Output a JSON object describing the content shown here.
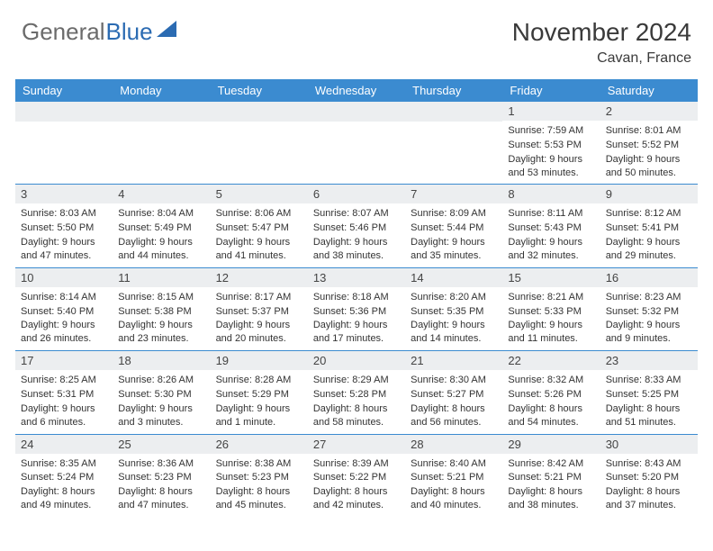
{
  "logo": {
    "text1": "General",
    "text2": "Blue"
  },
  "title": "November 2024",
  "location": "Cavan, France",
  "colors": {
    "header_bg": "#3b8bd0",
    "header_text": "#ffffff",
    "daynum_bg": "#eceef0",
    "border": "#3b8bd0",
    "logo_grey": "#6b6b6b",
    "logo_blue": "#2b6bb2"
  },
  "weekdays": [
    "Sunday",
    "Monday",
    "Tuesday",
    "Wednesday",
    "Thursday",
    "Friday",
    "Saturday"
  ],
  "weeks": [
    [
      {
        "num": "",
        "sunrise": "",
        "sunset": "",
        "daylight": ""
      },
      {
        "num": "",
        "sunrise": "",
        "sunset": "",
        "daylight": ""
      },
      {
        "num": "",
        "sunrise": "",
        "sunset": "",
        "daylight": ""
      },
      {
        "num": "",
        "sunrise": "",
        "sunset": "",
        "daylight": ""
      },
      {
        "num": "",
        "sunrise": "",
        "sunset": "",
        "daylight": ""
      },
      {
        "num": "1",
        "sunrise": "Sunrise: 7:59 AM",
        "sunset": "Sunset: 5:53 PM",
        "daylight": "Daylight: 9 hours and 53 minutes."
      },
      {
        "num": "2",
        "sunrise": "Sunrise: 8:01 AM",
        "sunset": "Sunset: 5:52 PM",
        "daylight": "Daylight: 9 hours and 50 minutes."
      }
    ],
    [
      {
        "num": "3",
        "sunrise": "Sunrise: 8:03 AM",
        "sunset": "Sunset: 5:50 PM",
        "daylight": "Daylight: 9 hours and 47 minutes."
      },
      {
        "num": "4",
        "sunrise": "Sunrise: 8:04 AM",
        "sunset": "Sunset: 5:49 PM",
        "daylight": "Daylight: 9 hours and 44 minutes."
      },
      {
        "num": "5",
        "sunrise": "Sunrise: 8:06 AM",
        "sunset": "Sunset: 5:47 PM",
        "daylight": "Daylight: 9 hours and 41 minutes."
      },
      {
        "num": "6",
        "sunrise": "Sunrise: 8:07 AM",
        "sunset": "Sunset: 5:46 PM",
        "daylight": "Daylight: 9 hours and 38 minutes."
      },
      {
        "num": "7",
        "sunrise": "Sunrise: 8:09 AM",
        "sunset": "Sunset: 5:44 PM",
        "daylight": "Daylight: 9 hours and 35 minutes."
      },
      {
        "num": "8",
        "sunrise": "Sunrise: 8:11 AM",
        "sunset": "Sunset: 5:43 PM",
        "daylight": "Daylight: 9 hours and 32 minutes."
      },
      {
        "num": "9",
        "sunrise": "Sunrise: 8:12 AM",
        "sunset": "Sunset: 5:41 PM",
        "daylight": "Daylight: 9 hours and 29 minutes."
      }
    ],
    [
      {
        "num": "10",
        "sunrise": "Sunrise: 8:14 AM",
        "sunset": "Sunset: 5:40 PM",
        "daylight": "Daylight: 9 hours and 26 minutes."
      },
      {
        "num": "11",
        "sunrise": "Sunrise: 8:15 AM",
        "sunset": "Sunset: 5:38 PM",
        "daylight": "Daylight: 9 hours and 23 minutes."
      },
      {
        "num": "12",
        "sunrise": "Sunrise: 8:17 AM",
        "sunset": "Sunset: 5:37 PM",
        "daylight": "Daylight: 9 hours and 20 minutes."
      },
      {
        "num": "13",
        "sunrise": "Sunrise: 8:18 AM",
        "sunset": "Sunset: 5:36 PM",
        "daylight": "Daylight: 9 hours and 17 minutes."
      },
      {
        "num": "14",
        "sunrise": "Sunrise: 8:20 AM",
        "sunset": "Sunset: 5:35 PM",
        "daylight": "Daylight: 9 hours and 14 minutes."
      },
      {
        "num": "15",
        "sunrise": "Sunrise: 8:21 AM",
        "sunset": "Sunset: 5:33 PM",
        "daylight": "Daylight: 9 hours and 11 minutes."
      },
      {
        "num": "16",
        "sunrise": "Sunrise: 8:23 AM",
        "sunset": "Sunset: 5:32 PM",
        "daylight": "Daylight: 9 hours and 9 minutes."
      }
    ],
    [
      {
        "num": "17",
        "sunrise": "Sunrise: 8:25 AM",
        "sunset": "Sunset: 5:31 PM",
        "daylight": "Daylight: 9 hours and 6 minutes."
      },
      {
        "num": "18",
        "sunrise": "Sunrise: 8:26 AM",
        "sunset": "Sunset: 5:30 PM",
        "daylight": "Daylight: 9 hours and 3 minutes."
      },
      {
        "num": "19",
        "sunrise": "Sunrise: 8:28 AM",
        "sunset": "Sunset: 5:29 PM",
        "daylight": "Daylight: 9 hours and 1 minute."
      },
      {
        "num": "20",
        "sunrise": "Sunrise: 8:29 AM",
        "sunset": "Sunset: 5:28 PM",
        "daylight": "Daylight: 8 hours and 58 minutes."
      },
      {
        "num": "21",
        "sunrise": "Sunrise: 8:30 AM",
        "sunset": "Sunset: 5:27 PM",
        "daylight": "Daylight: 8 hours and 56 minutes."
      },
      {
        "num": "22",
        "sunrise": "Sunrise: 8:32 AM",
        "sunset": "Sunset: 5:26 PM",
        "daylight": "Daylight: 8 hours and 54 minutes."
      },
      {
        "num": "23",
        "sunrise": "Sunrise: 8:33 AM",
        "sunset": "Sunset: 5:25 PM",
        "daylight": "Daylight: 8 hours and 51 minutes."
      }
    ],
    [
      {
        "num": "24",
        "sunrise": "Sunrise: 8:35 AM",
        "sunset": "Sunset: 5:24 PM",
        "daylight": "Daylight: 8 hours and 49 minutes."
      },
      {
        "num": "25",
        "sunrise": "Sunrise: 8:36 AM",
        "sunset": "Sunset: 5:23 PM",
        "daylight": "Daylight: 8 hours and 47 minutes."
      },
      {
        "num": "26",
        "sunrise": "Sunrise: 8:38 AM",
        "sunset": "Sunset: 5:23 PM",
        "daylight": "Daylight: 8 hours and 45 minutes."
      },
      {
        "num": "27",
        "sunrise": "Sunrise: 8:39 AM",
        "sunset": "Sunset: 5:22 PM",
        "daylight": "Daylight: 8 hours and 42 minutes."
      },
      {
        "num": "28",
        "sunrise": "Sunrise: 8:40 AM",
        "sunset": "Sunset: 5:21 PM",
        "daylight": "Daylight: 8 hours and 40 minutes."
      },
      {
        "num": "29",
        "sunrise": "Sunrise: 8:42 AM",
        "sunset": "Sunset: 5:21 PM",
        "daylight": "Daylight: 8 hours and 38 minutes."
      },
      {
        "num": "30",
        "sunrise": "Sunrise: 8:43 AM",
        "sunset": "Sunset: 5:20 PM",
        "daylight": "Daylight: 8 hours and 37 minutes."
      }
    ]
  ]
}
